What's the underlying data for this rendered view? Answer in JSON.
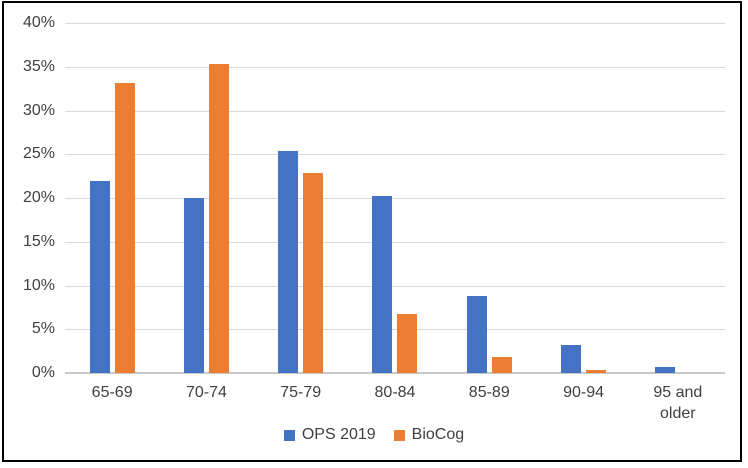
{
  "figure": {
    "background": "#ffffff",
    "border_color": "#000000",
    "gridline_color": "#d9d9d9",
    "axis_line_color": "#c8c8c8",
    "label_color": "#404040"
  },
  "chart_data": {
    "type": "bar",
    "title": "",
    "xlabel": "",
    "ylabel": "",
    "categories": [
      "65-69",
      "70-74",
      "75-79",
      "80-84",
      "85-89",
      "90-94",
      "95 and older"
    ],
    "series": [
      {
        "name": "OPS 2019",
        "color": "#4472C4",
        "values": [
          22.0,
          20.0,
          25.4,
          20.2,
          8.8,
          3.2,
          0.7
        ]
      },
      {
        "name": "BioCog",
        "color": "#ED7D31",
        "values": [
          33.1,
          35.3,
          22.9,
          6.8,
          1.8,
          0.3,
          0.0
        ]
      }
    ],
    "ylim": [
      0,
      40
    ],
    "yticks": [
      "0%",
      "5%",
      "10%",
      "15%",
      "20%",
      "25%",
      "30%",
      "35%",
      "40%"
    ],
    "grid": true,
    "legend_position": "bottom"
  }
}
